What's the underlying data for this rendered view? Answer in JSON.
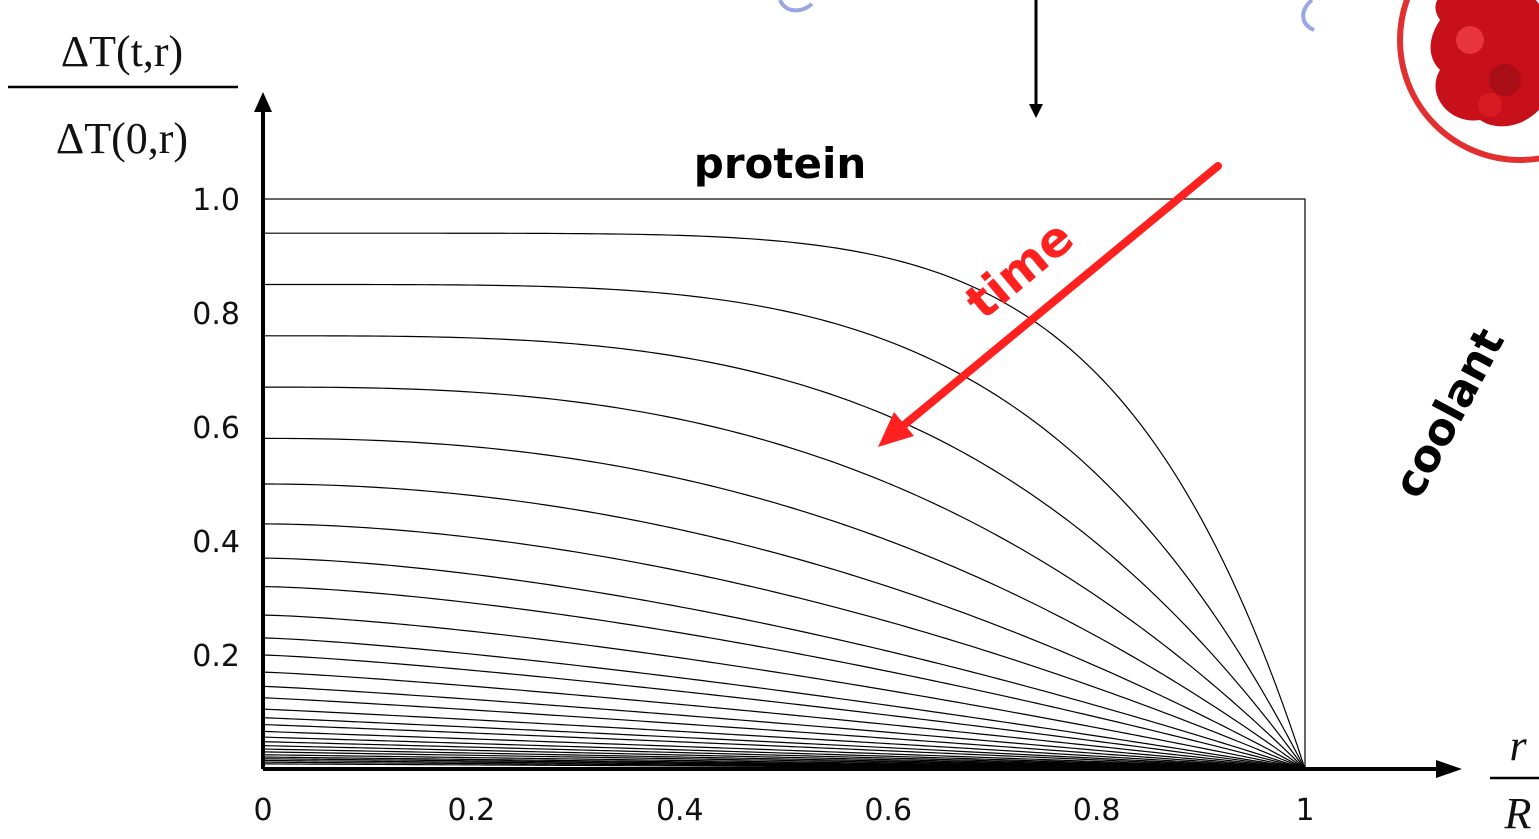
{
  "chart_data": {
    "type": "line",
    "title": "",
    "ylabel_numerator": "ΔT(t,r)",
    "ylabel_denominator": "ΔT(0,r)",
    "xlabel_numerator": "r",
    "xlabel_denominator": "R",
    "xlim": [
      0,
      1
    ],
    "ylim": [
      0,
      1.0
    ],
    "x_ticks": [
      "0",
      "0.2",
      "0.4",
      "0.6",
      "0.8",
      "1"
    ],
    "y_ticks": [
      "0.2",
      "0.4",
      "0.6",
      "0.8",
      "1.0"
    ],
    "annotations": {
      "region_label": "protein",
      "boundary_label": "coolant",
      "arrow_label": "time"
    },
    "curve_model": "profile drops to 0 at r/R = 1",
    "series_start_values": [
      0.94,
      0.85,
      0.76,
      0.67,
      0.58,
      0.5,
      0.43,
      0.37,
      0.32,
      0.27,
      0.23,
      0.2,
      0.17,
      0.145,
      0.125,
      0.105,
      0.09,
      0.078,
      0.066,
      0.056,
      0.048,
      0.041,
      0.035,
      0.03,
      0.025,
      0.021,
      0.018,
      0.015,
      0.012,
      0.009
    ],
    "series_shape_exponents": [
      6.0,
      4.2,
      3.3,
      2.7,
      2.3,
      2.0,
      1.8,
      1.6,
      1.5,
      1.4,
      1.3,
      1.25,
      1.2,
      1.15,
      1.1,
      1.08,
      1.05,
      1.03,
      1.0,
      1.0,
      1.0,
      1.0,
      1.0,
      1.0,
      1.0,
      1.0,
      1.0,
      1.0,
      1.0,
      1.0
    ],
    "grid": false,
    "legend": "none"
  },
  "colors": {
    "curve": "#000000",
    "axis": "#000000",
    "time_arrow": "#ff2020",
    "protein_blob": "#c8101a",
    "blob_outline": "#e23030"
  }
}
